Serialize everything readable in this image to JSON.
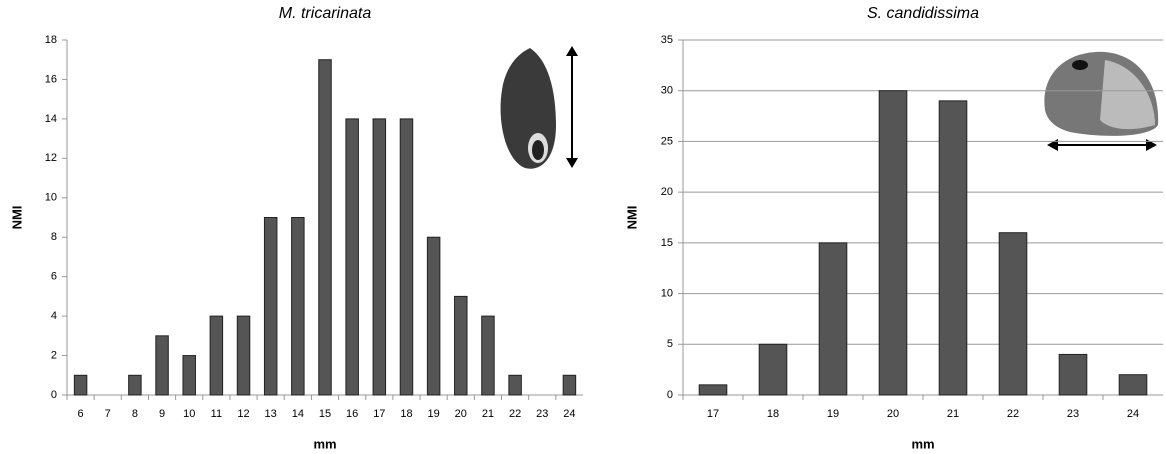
{
  "chart_data": [
    {
      "type": "bar",
      "title": "M. tricarinata",
      "x_label": "mm",
      "y_label": "NMI",
      "categories": [
        "6",
        "7",
        "8",
        "9",
        "10",
        "11",
        "12",
        "13",
        "14",
        "15",
        "16",
        "17",
        "18",
        "19",
        "20",
        "21",
        "22",
        "23",
        "24"
      ],
      "values": [
        1,
        0,
        1,
        3,
        2,
        4,
        4,
        9,
        9,
        17,
        14,
        14,
        14,
        8,
        5,
        4,
        1,
        0,
        1
      ],
      "color": "#555555",
      "ylim": [
        0,
        18
      ],
      "yticks": [
        0,
        2,
        4,
        6,
        8,
        10,
        12,
        14,
        16,
        18
      ],
      "grid": false
    },
    {
      "type": "bar",
      "title": "S. candidissima",
      "x_label": "mm",
      "y_label": "NMI",
      "categories": [
        "17",
        "18",
        "19",
        "20",
        "21",
        "22",
        "23",
        "24"
      ],
      "values": [
        1,
        5,
        15,
        30,
        29,
        16,
        4,
        2
      ],
      "color": "#555555",
      "ylim": [
        0,
        35
      ],
      "yticks": [
        0,
        5,
        10,
        15,
        20,
        25,
        30,
        35
      ],
      "grid": true
    }
  ]
}
